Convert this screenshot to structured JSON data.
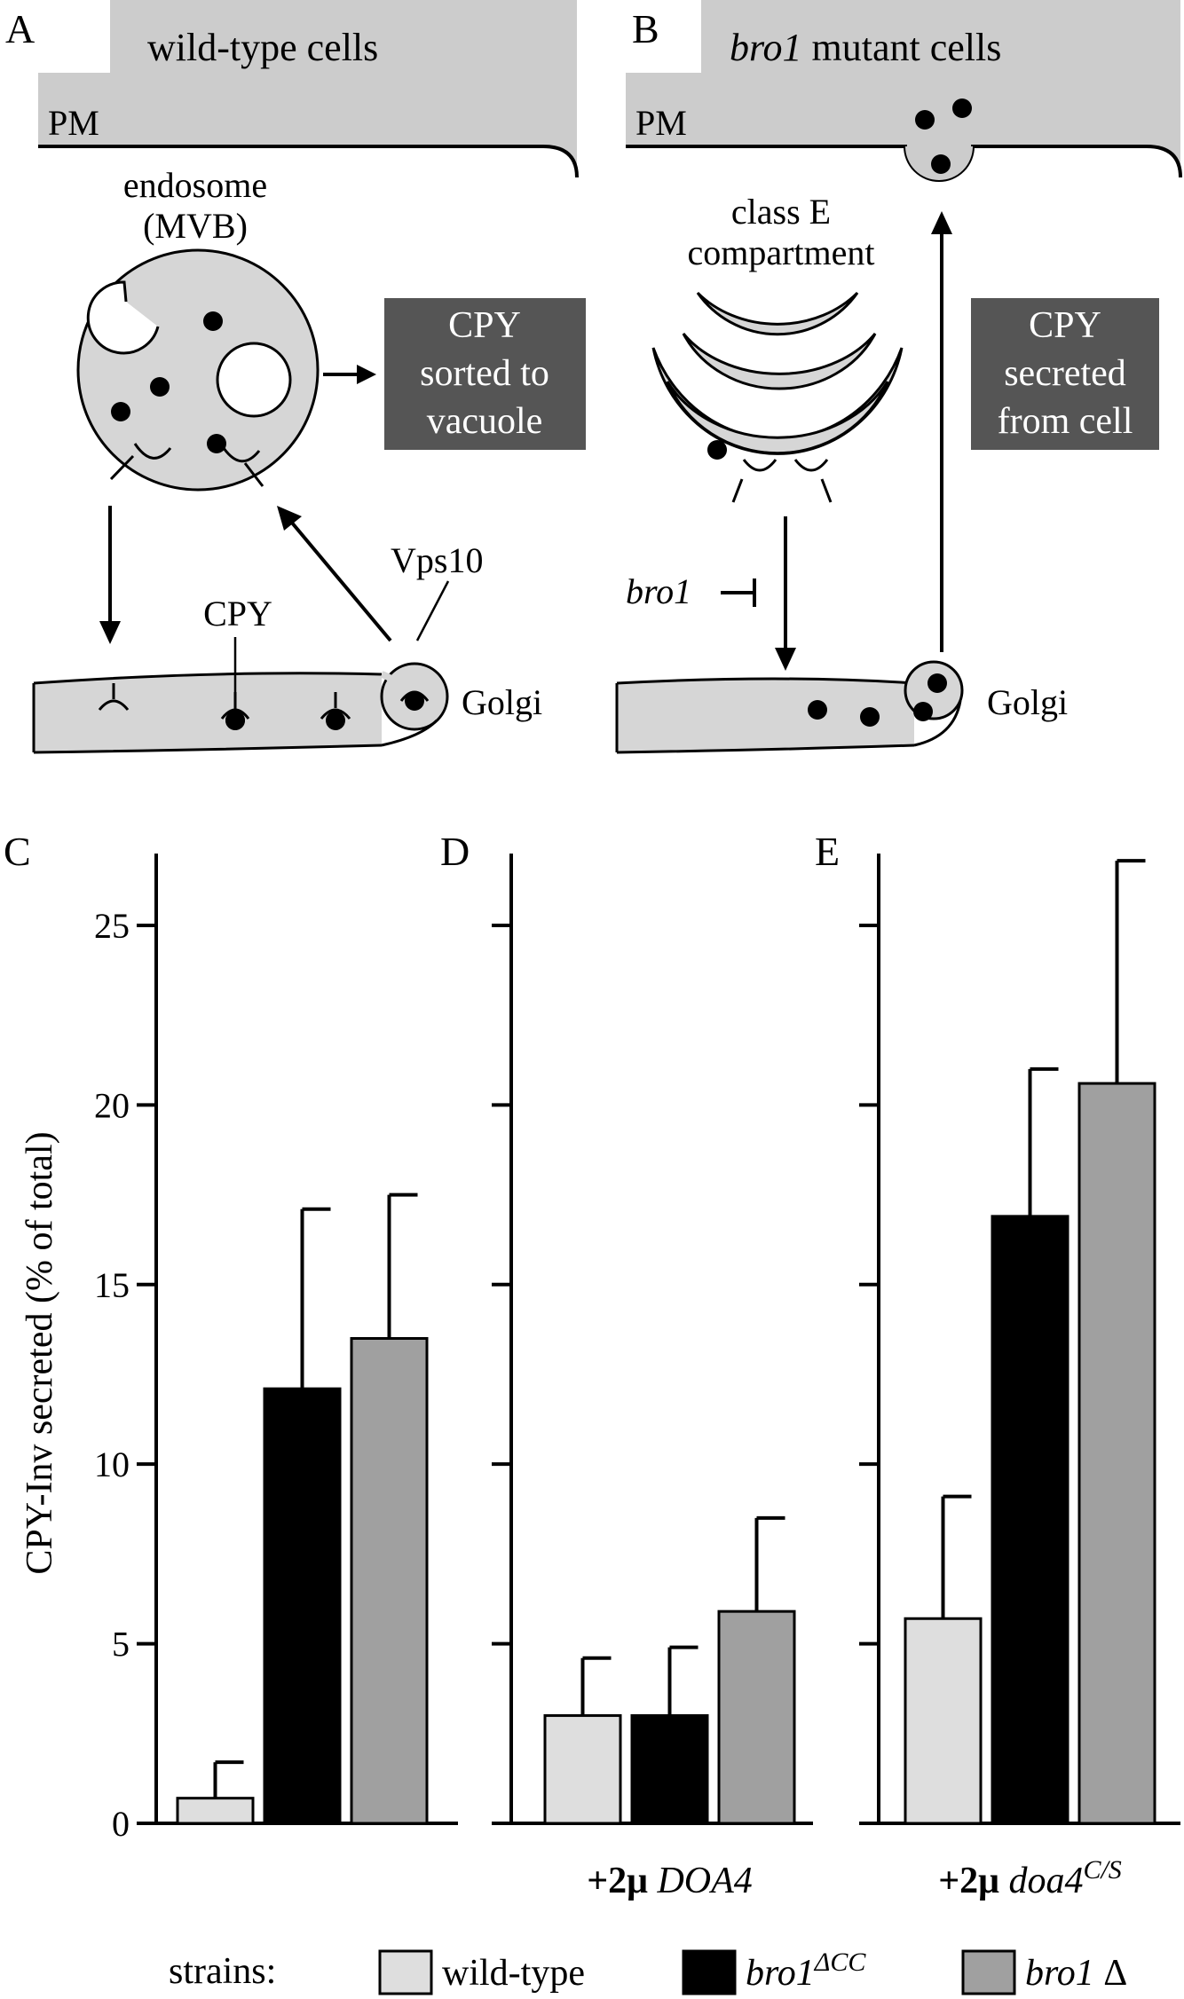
{
  "panels": {
    "a": {
      "letter": "A",
      "title": "wild-type cells",
      "pm": "PM",
      "endosome": [
        "endosome",
        "(MVB)"
      ],
      "box": [
        "CPY",
        "sorted to",
        "vacuole"
      ],
      "cpy": "CPY",
      "vps10": "Vps10",
      "golgi": "Golgi"
    },
    "b": {
      "letter": "B",
      "title_italic": "bro1",
      "title_rest": " mutant cells",
      "pm": "PM",
      "compartment": [
        "class E",
        "compartment"
      ],
      "box": [
        "CPY",
        "secreted",
        "from cell"
      ],
      "bro1": "bro1",
      "golgi": "Golgi"
    }
  },
  "chart_data": [
    {
      "type": "bar",
      "panel": "C",
      "ylabel": "CPY-Inv secreted (% of total)",
      "ylim": [
        0,
        27
      ],
      "yticks": [
        0,
        5,
        10,
        15,
        20,
        25
      ],
      "xlabel": "",
      "series": [
        {
          "name": "wild-type",
          "value": 0.7,
          "error": 1.0,
          "color": "#dedede"
        },
        {
          "name": "bro1 ΔCC",
          "value": 12.1,
          "error": 5.0,
          "color": "#000000"
        },
        {
          "name": "bro1 Δ",
          "value": 13.5,
          "error": 4.0,
          "color": "#a0a0a0"
        }
      ]
    },
    {
      "type": "bar",
      "panel": "D",
      "ylim": [
        0,
        27
      ],
      "xlabel_prefix": "+2μ",
      "xlabel_italic": "DOA4",
      "xlabel_sup": "",
      "series": [
        {
          "name": "wild-type",
          "value": 3.0,
          "error": 1.6,
          "color": "#dedede"
        },
        {
          "name": "bro1 ΔCC",
          "value": 3.0,
          "error": 1.9,
          "color": "#000000"
        },
        {
          "name": "bro1 Δ",
          "value": 5.9,
          "error": 2.6,
          "color": "#a0a0a0"
        }
      ]
    },
    {
      "type": "bar",
      "panel": "E",
      "ylim": [
        0,
        27
      ],
      "xlabel_prefix": "+2μ",
      "xlabel_italic": "doa4",
      "xlabel_sup": "C/S",
      "series": [
        {
          "name": "wild-type",
          "value": 5.7,
          "error": 3.4,
          "color": "#dedede"
        },
        {
          "name": "bro1 ΔCC",
          "value": 16.9,
          "error": 4.1,
          "color": "#000000"
        },
        {
          "name": "bro1 Δ",
          "value": 20.6,
          "error": 6.2,
          "color": "#a0a0a0"
        }
      ]
    }
  ],
  "legend": {
    "title": "strains:",
    "entries": [
      {
        "italic": "",
        "text": "wild-type",
        "sup": "",
        "color": "#dedede"
      },
      {
        "italic": "bro1",
        "text": "",
        "sup": "ΔCC",
        "color": "#000000"
      },
      {
        "italic": "bro1",
        "text": " Δ",
        "sup": "",
        "color": "#a0a0a0"
      }
    ]
  }
}
